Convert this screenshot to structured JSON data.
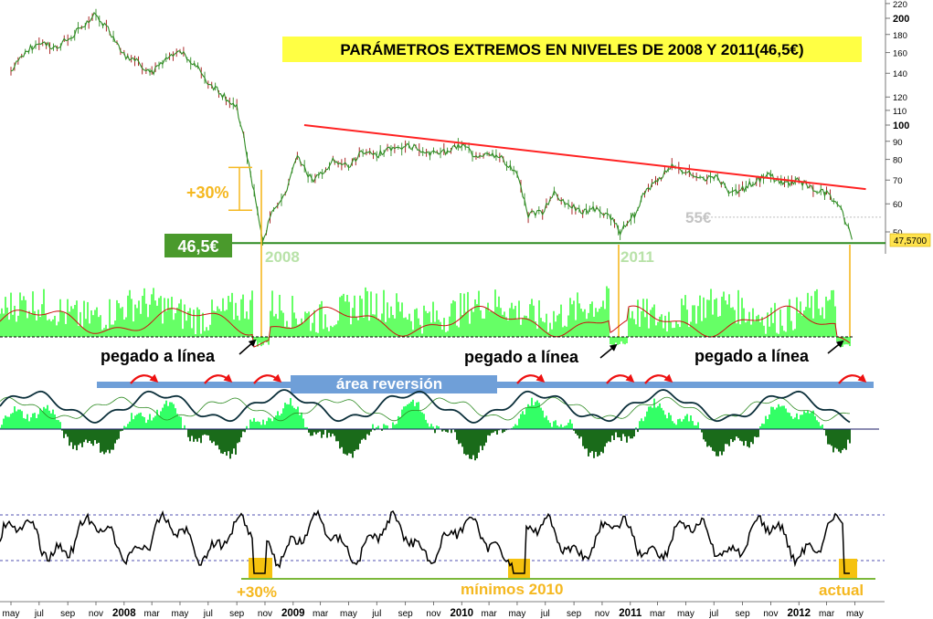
{
  "chart_data": [
    {
      "type": "line",
      "panel": "price",
      "title": "PARÁMETROS EXTREMOS EN NIVELES DE 2008 Y 2011(46,5€)",
      "title_bg": "#ffff44",
      "y_scale": "log",
      "ylim": [
        40,
        220
      ],
      "y_ticks": [
        220,
        200,
        180,
        160,
        140,
        120,
        110,
        100,
        90,
        80,
        70,
        60,
        50
      ],
      "bold_ticks": [
        200,
        100
      ],
      "current_value_label": "47,5700",
      "series": [
        {
          "color": "#2e8b22",
          "points": [
            [
              "2007-05-01",
              142
            ],
            [
              "2007-06-01",
              160
            ],
            [
              "2007-07-01",
              172
            ],
            [
              "2007-08-01",
              165
            ],
            [
              "2007-09-01",
              174
            ],
            [
              "2007-10-01",
              188
            ],
            [
              "2007-11-01",
              205
            ],
            [
              "2007-12-01",
              184
            ],
            [
              "2008-01-01",
              158
            ],
            [
              "2008-02-01",
              150
            ],
            [
              "2008-03-01",
              140
            ],
            [
              "2008-04-01",
              152
            ],
            [
              "2008-05-01",
              160
            ],
            [
              "2008-06-01",
              150
            ],
            [
              "2008-07-01",
              132
            ],
            [
              "2008-08-01",
              122
            ],
            [
              "2008-09-01",
              112
            ],
            [
              "2008-10-01",
              72
            ],
            [
              "2008-10-27",
              47
            ],
            [
              "2008-11-20",
              58
            ],
            [
              "2008-12-15",
              64
            ],
            [
              "2009-01-10",
              82
            ],
            [
              "2009-02-10",
              70
            ],
            [
              "2009-03-05",
              74
            ],
            [
              "2009-04-01",
              80
            ],
            [
              "2009-05-01",
              76
            ],
            [
              "2009-06-01",
              85
            ],
            [
              "2009-07-01",
              82
            ],
            [
              "2009-08-01",
              86
            ],
            [
              "2009-09-01",
              88
            ],
            [
              "2009-10-01",
              86
            ],
            [
              "2009-11-01",
              83
            ],
            [
              "2009-12-01",
              84
            ],
            [
              "2010-01-01",
              88
            ],
            [
              "2010-02-01",
              82
            ],
            [
              "2010-03-01",
              84
            ],
            [
              "2010-04-01",
              80
            ],
            [
              "2010-05-01",
              72
            ],
            [
              "2010-05-25",
              56
            ],
            [
              "2010-06-25",
              57
            ],
            [
              "2010-07-20",
              64
            ],
            [
              "2010-08-20",
              60
            ],
            [
              "2010-09-20",
              57
            ],
            [
              "2010-10-20",
              58
            ],
            [
              "2010-11-20",
              55
            ],
            [
              "2010-12-10",
              50
            ],
            [
              "2011-01-10",
              56
            ],
            [
              "2011-02-01",
              65
            ],
            [
              "2011-03-01",
              70
            ],
            [
              "2011-04-01",
              76
            ],
            [
              "2011-05-01",
              74
            ],
            [
              "2011-06-01",
              70
            ],
            [
              "2011-07-01",
              72
            ],
            [
              "2011-08-10",
              64
            ],
            [
              "2011-09-01",
              66
            ],
            [
              "2011-10-01",
              70
            ],
            [
              "2011-11-01",
              72
            ],
            [
              "2011-12-01",
              68
            ],
            [
              "2012-01-01",
              70
            ],
            [
              "2012-02-01",
              66
            ],
            [
              "2012-03-01",
              64
            ],
            [
              "2012-04-01",
              58
            ],
            [
              "2012-04-25",
              47.57
            ]
          ]
        }
      ],
      "trendline": {
        "color": "#ff2222",
        "from": [
          "2009-01-25",
          100
        ],
        "to": [
          "2012-05-25",
          66
        ]
      },
      "support": {
        "color": "#2e8b22",
        "value": 46.5,
        "label": "46,5€"
      },
      "resistance_dotted": {
        "value": 55,
        "label": "55€",
        "from": "2011-06-01"
      },
      "year_markers": [
        "2008",
        "2011"
      ],
      "annotation_range": {
        "label": "+30%",
        "from": 46.5,
        "to": 76
      }
    },
    {
      "type": "area",
      "panel": "indicator-1",
      "fill_color": "#66ff66",
      "line_color": "#cc1111",
      "annotations": [
        "pegado a línea",
        "pegado a línea",
        "pegado a línea"
      ]
    },
    {
      "type": "line",
      "panel": "indicator-2",
      "histogram_up_color": "#33ff66",
      "histogram_down_color": "#1a6b1a",
      "line_color": "#0b2f3a",
      "band_color": "#6f9fd8",
      "annotations": [
        "área reversión"
      ]
    },
    {
      "type": "line",
      "panel": "indicator-3",
      "line_color": "#000000",
      "highlight_color": "#f5c20f",
      "annotations": [
        "+30%",
        "mínimos 2010",
        "actual"
      ]
    }
  ],
  "x_axis": {
    "start": "2007-05-01",
    "end": "2012-05-20",
    "ticks": [
      {
        "d": "2007-05-01",
        "l": "may",
        "b": false
      },
      {
        "d": "2007-07-01",
        "l": "jul",
        "b": false
      },
      {
        "d": "2007-09-01",
        "l": "sep",
        "b": false
      },
      {
        "d": "2007-11-01",
        "l": "nov",
        "b": false
      },
      {
        "d": "2008-01-01",
        "l": "2008",
        "b": true
      },
      {
        "d": "2008-03-01",
        "l": "mar",
        "b": false
      },
      {
        "d": "2008-05-01",
        "l": "may",
        "b": false
      },
      {
        "d": "2008-07-01",
        "l": "jul",
        "b": false
      },
      {
        "d": "2008-09-01",
        "l": "sep",
        "b": false
      },
      {
        "d": "2008-11-01",
        "l": "nov",
        "b": false
      },
      {
        "d": "2009-01-01",
        "l": "2009",
        "b": true
      },
      {
        "d": "2009-03-01",
        "l": "mar",
        "b": false
      },
      {
        "d": "2009-05-01",
        "l": "may",
        "b": false
      },
      {
        "d": "2009-07-01",
        "l": "jul",
        "b": false
      },
      {
        "d": "2009-09-01",
        "l": "sep",
        "b": false
      },
      {
        "d": "2009-11-01",
        "l": "nov",
        "b": false
      },
      {
        "d": "2010-01-01",
        "l": "2010",
        "b": true
      },
      {
        "d": "2010-03-01",
        "l": "mar",
        "b": false
      },
      {
        "d": "2010-05-01",
        "l": "may",
        "b": false
      },
      {
        "d": "2010-07-01",
        "l": "jul",
        "b": false
      },
      {
        "d": "2010-09-01",
        "l": "sep",
        "b": false
      },
      {
        "d": "2010-11-01",
        "l": "nov",
        "b": false
      },
      {
        "d": "2011-01-01",
        "l": "2011",
        "b": true
      },
      {
        "d": "2011-03-01",
        "l": "mar",
        "b": false
      },
      {
        "d": "2011-05-01",
        "l": "may",
        "b": false
      },
      {
        "d": "2011-07-01",
        "l": "jul",
        "b": false
      },
      {
        "d": "2011-09-01",
        "l": "sep",
        "b": false
      },
      {
        "d": "2011-11-01",
        "l": "nov",
        "b": false
      },
      {
        "d": "2012-01-01",
        "l": "2012",
        "b": true
      },
      {
        "d": "2012-03-01",
        "l": "mar",
        "b": false
      },
      {
        "d": "2012-05-01",
        "l": "may",
        "b": false
      }
    ]
  },
  "colors": {
    "highlight_orange": "#f5b820",
    "label_green_bg": "#4a9a2c",
    "year_label": "#b8e2a8",
    "muted_label": "#c4c4c4",
    "dotted_guide": "#1a1a99"
  }
}
